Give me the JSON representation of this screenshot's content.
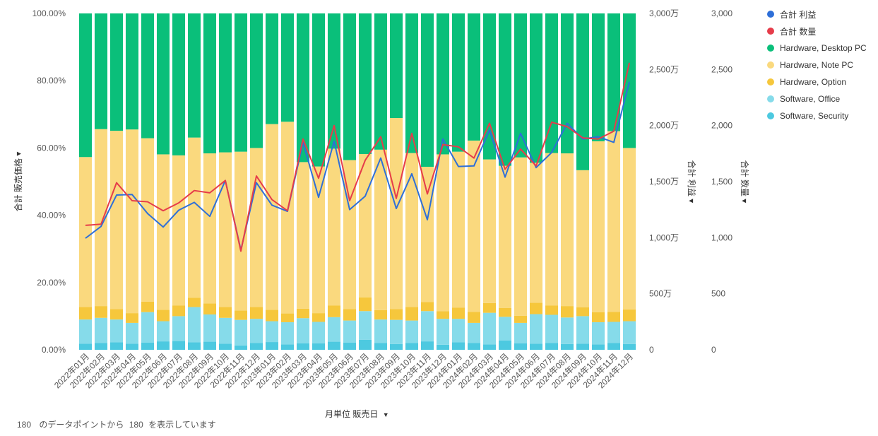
{
  "chart_data": {
    "type": "bar",
    "stacked": true,
    "percent_stacked": true,
    "categories": [
      "2022年01月",
      "2022年02月",
      "2022年03月",
      "2022年04月",
      "2022年05月",
      "2022年06月",
      "2022年07月",
      "2022年08月",
      "2022年09月",
      "2022年10月",
      "2022年11月",
      "2022年12月",
      "2023年01月",
      "2023年02月",
      "2023年03月",
      "2023年04月",
      "2023年05月",
      "2023年06月",
      "2023年07月",
      "2023年08月",
      "2023年09月",
      "2023年10月",
      "2023年11月",
      "2023年12月",
      "2024年01月",
      "2024年02月",
      "2024年03月",
      "2024年04月",
      "2024年05月",
      "2024年06月",
      "2024年07月",
      "2024年08月",
      "2024年09月",
      "2024年10月",
      "2024年11月",
      "2024年12月"
    ],
    "series": [
      {
        "name": "Software, Security",
        "color": "#4dc9e0",
        "values": [
          1.8,
          2.0,
          2.2,
          1.8,
          2.1,
          2.5,
          2.6,
          2.2,
          2.4,
          1.8,
          1.3,
          2.0,
          2.3,
          1.6,
          1.9,
          1.9,
          2.4,
          2.1,
          3.0,
          2.0,
          1.7,
          2.0,
          2.5,
          1.5,
          2.2,
          2.0,
          1.6,
          2.8,
          1.9,
          1.8,
          2.0,
          1.7,
          1.8,
          1.6,
          2.0,
          1.7
        ]
      },
      {
        "name": "Software, Office",
        "color": "#86dbea",
        "values": [
          7.2,
          7.5,
          6.8,
          6.2,
          9.1,
          6.0,
          7.4,
          10.5,
          8.1,
          7.7,
          7.6,
          7.2,
          6.2,
          6.6,
          7.5,
          6.4,
          7.3,
          6.6,
          8.5,
          7.0,
          7.2,
          6.7,
          9.0,
          7.7,
          7.0,
          6.0,
          9.4,
          7.0,
          6.1,
          8.8,
          8.4,
          7.9,
          8.2,
          6.6,
          6.3,
          6.8
        ]
      },
      {
        "name": "Hardware, Option",
        "color": "#f6c73c",
        "values": [
          3.7,
          3.5,
          3.1,
          2.9,
          3.1,
          3.4,
          3.2,
          2.8,
          3.3,
          3.2,
          2.8,
          3.5,
          3.4,
          2.6,
          2.8,
          2.6,
          3.5,
          3.4,
          4.1,
          2.8,
          3.2,
          4.0,
          2.7,
          2.3,
          3.3,
          3.3,
          2.9,
          2.6,
          2.1,
          3.4,
          2.8,
          3.4,
          2.6,
          3.0,
          3.0,
          3.5
        ]
      },
      {
        "name": "Hardware, Note PC",
        "color": "#fad97e",
        "values": [
          44.6,
          52.6,
          53.0,
          54.6,
          48.6,
          46.2,
          44.6,
          47.6,
          44.6,
          46.0,
          47.2,
          47.3,
          55.2,
          57.0,
          43.6,
          43.6,
          46.6,
          44.3,
          42.6,
          47.7,
          56.8,
          45.8,
          40.2,
          46.6,
          46.4,
          50.9,
          42.7,
          42.3,
          47.1,
          41.6,
          45.3,
          45.4,
          40.8,
          50.8,
          53.7,
          48.0
        ]
      },
      {
        "name": "Hardware, Desktop PC",
        "color": "#0abf7a",
        "values": [
          42.7,
          34.4,
          34.9,
          34.5,
          37.1,
          41.9,
          42.2,
          36.9,
          41.6,
          41.3,
          41.1,
          40.0,
          32.9,
          32.2,
          44.2,
          45.5,
          40.2,
          43.6,
          41.8,
          40.5,
          31.1,
          41.5,
          45.6,
          41.9,
          41.1,
          37.8,
          43.4,
          45.3,
          42.8,
          44.4,
          41.5,
          41.6,
          46.6,
          38.0,
          35.0,
          40.0
        ]
      }
    ],
    "lines": [
      {
        "name": "合計 利益",
        "color": "#2e6fd8",
        "axis": "profit",
        "values": [
          995,
          1100,
          1380,
          1385,
          1215,
          1095,
          1245,
          1315,
          1190,
          1510,
          890,
          1490,
          1290,
          1235,
          1850,
          1360,
          1860,
          1250,
          1370,
          1710,
          1260,
          1570,
          1160,
          1880,
          1635,
          1640,
          1960,
          1540,
          1930,
          1625,
          1760,
          2020,
          1880,
          1900,
          1850,
          2390
        ]
      },
      {
        "name": "合計 数量",
        "color": "#e63c4a",
        "axis": "quantity",
        "values": [
          1110,
          1120,
          1490,
          1330,
          1320,
          1240,
          1310,
          1420,
          1400,
          1510,
          880,
          1550,
          1340,
          1240,
          1880,
          1530,
          2000,
          1330,
          1690,
          1900,
          1350,
          1930,
          1390,
          1830,
          1810,
          1710,
          2020,
          1610,
          1790,
          1640,
          2030,
          1990,
          1890,
          1880,
          1950,
          2560
        ]
      }
    ],
    "y_left": {
      "label": "合計 販売価格",
      "ylim": [
        0,
        100
      ],
      "ticks": [
        "0.00%",
        "20.00%",
        "40.00%",
        "60.00%",
        "80.00%",
        "100.00%"
      ]
    },
    "y_right1": {
      "label": "合計 利益",
      "ylim": [
        0,
        30000000
      ],
      "ticks": [
        "0",
        "500万",
        "1,000万",
        "1,500万",
        "2,000万",
        "2,500万",
        "3,000万"
      ]
    },
    "y_right2": {
      "label": "合計 数量",
      "ylim": [
        0,
        3000
      ],
      "ticks": [
        "0",
        "500",
        "1,000",
        "1,500",
        "2,000",
        "2,500",
        "3,000"
      ]
    },
    "xlabel": "月単位 販売日",
    "legend_placement": "top-right",
    "grid": false
  },
  "legend": [
    {
      "label": "合計 利益",
      "color": "#2e6fd8"
    },
    {
      "label": "合計 数量",
      "color": "#e63c4a"
    },
    {
      "label": "Hardware, Desktop PC",
      "color": "#0abf7a"
    },
    {
      "label": "Hardware, Note PC",
      "color": "#fad97e"
    },
    {
      "label": "Hardware, Option",
      "color": "#f6c73c"
    },
    {
      "label": "Software, Office",
      "color": "#86dbea"
    },
    {
      "label": "Software, Security",
      "color": "#4dc9e0"
    }
  ],
  "footer": {
    "count_a": "180",
    "middle_text": "のデータポイントから",
    "count_b": "180",
    "end_text": "を表示しています"
  },
  "icons": {
    "dropdown": "caret-down-icon"
  }
}
